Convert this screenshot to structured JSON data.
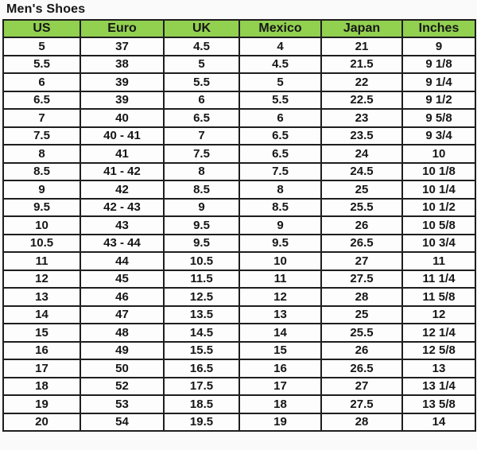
{
  "page": {
    "title": "Men's Shoes"
  },
  "colors": {
    "page_bg": "#fafafa",
    "header_bg": "#92d050",
    "cell_bg": "#fdfdfd",
    "border": "#1e1e1e",
    "text": "#161616"
  },
  "chart_data": {
    "type": "table",
    "title": "Men's Shoes",
    "columns": [
      "US",
      "Euro",
      "UK",
      "Mexico",
      "Japan",
      "Inches"
    ],
    "rows": [
      [
        "5",
        "37",
        "4.5",
        "4",
        "21",
        "9"
      ],
      [
        "5.5",
        "38",
        "5",
        "4.5",
        "21.5",
        "9 1/8"
      ],
      [
        "6",
        "39",
        "5.5",
        "5",
        "22",
        "9 1/4"
      ],
      [
        "6.5",
        "39",
        "6",
        "5.5",
        "22.5",
        "9 1/2"
      ],
      [
        "7",
        "40",
        "6.5",
        "6",
        "23",
        "9 5/8"
      ],
      [
        "7.5",
        "40 - 41",
        "7",
        "6.5",
        "23.5",
        "9 3/4"
      ],
      [
        "8",
        "41",
        "7.5",
        "6.5",
        "24",
        "10"
      ],
      [
        "8.5",
        "41 - 42",
        "8",
        "7.5",
        "24.5",
        "10 1/8"
      ],
      [
        "9",
        "42",
        "8.5",
        "8",
        "25",
        "10 1/4"
      ],
      [
        "9.5",
        "42 - 43",
        "9",
        "8.5",
        "25.5",
        "10 1/2"
      ],
      [
        "10",
        "43",
        "9.5",
        "9",
        "26",
        "10 5/8"
      ],
      [
        "10.5",
        "43 - 44",
        "9.5",
        "9.5",
        "26.5",
        "10 3/4"
      ],
      [
        "11",
        "44",
        "10.5",
        "10",
        "27",
        "11"
      ],
      [
        "12",
        "45",
        "11.5",
        "11",
        "27.5",
        "11 1/4"
      ],
      [
        "13",
        "46",
        "12.5",
        "12",
        "28",
        "11 5/8"
      ],
      [
        "14",
        "47",
        "13.5",
        "13",
        "25",
        "12"
      ],
      [
        "15",
        "48",
        "14.5",
        "14",
        "25.5",
        "12 1/4"
      ],
      [
        "16",
        "49",
        "15.5",
        "15",
        "26",
        "12 5/8"
      ],
      [
        "17",
        "50",
        "16.5",
        "16",
        "26.5",
        "13"
      ],
      [
        "18",
        "52",
        "17.5",
        "17",
        "27",
        "13 1/4"
      ],
      [
        "19",
        "53",
        "18.5",
        "18",
        "27.5",
        "13 5/8"
      ],
      [
        "20",
        "54",
        "19.5",
        "19",
        "28",
        "14"
      ]
    ]
  }
}
